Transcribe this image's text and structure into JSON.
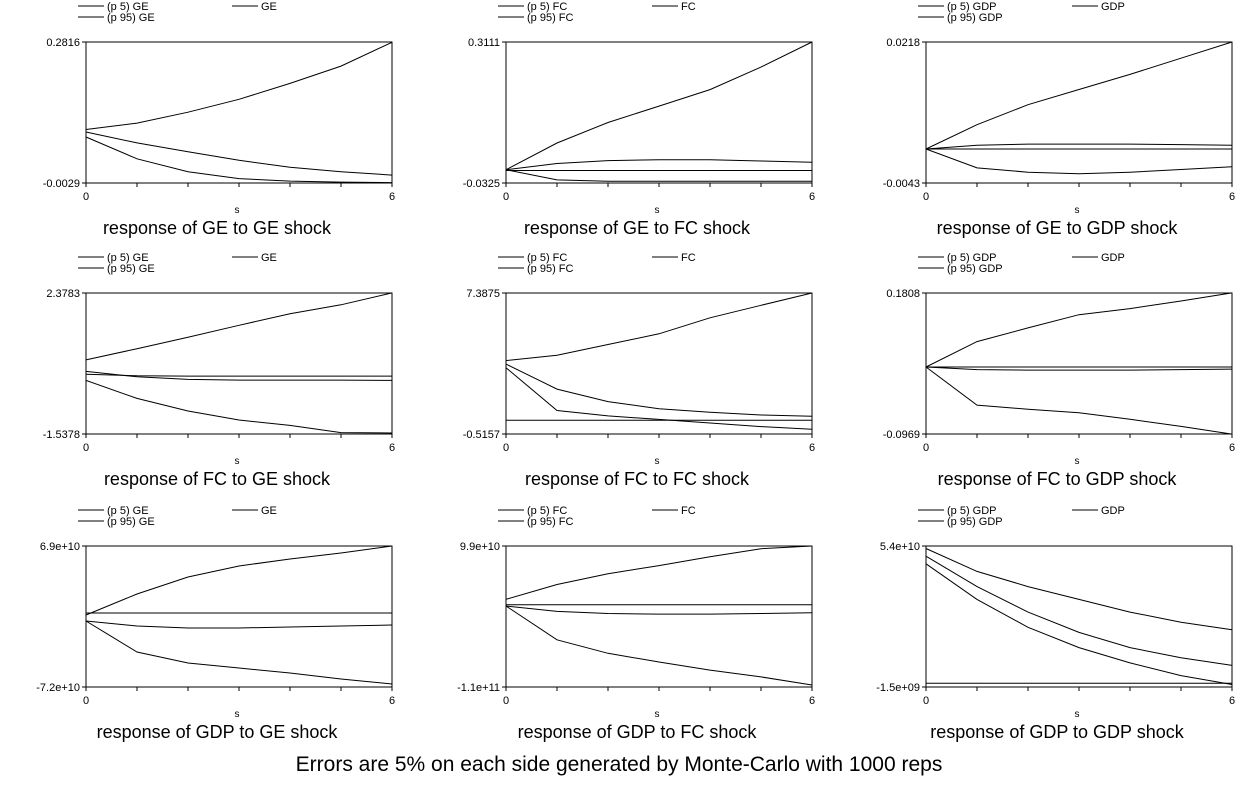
{
  "footer": "Errors are 5% on each side generated by Monte-Carlo with 1000 reps",
  "chart_data": [
    {
      "type": "line",
      "title": "response of GE to GE shock",
      "xlabel": "s",
      "ylabel": "",
      "x": [
        0,
        1,
        2,
        3,
        4,
        5,
        6
      ],
      "ylim": [
        -0.0029,
        0.2816
      ],
      "yticks": [
        "0.2816",
        "-0.0029"
      ],
      "xticks": [
        "0",
        "6"
      ],
      "legend": [
        "(p 5) GE",
        "GE",
        "(p 95) GE"
      ],
      "series": [
        {
          "name": "(p 5) GE",
          "values": [
            0.09,
            0.046,
            0.02,
            0.006,
            0.001,
            -0.001,
            -0.002
          ]
        },
        {
          "name": "GE",
          "values": [
            0.1,
            0.078,
            0.06,
            0.043,
            0.029,
            0.02,
            0.013
          ]
        },
        {
          "name": "(p 95) GE",
          "values": [
            0.105,
            0.118,
            0.14,
            0.166,
            0.198,
            0.233,
            0.281
          ]
        },
        {
          "name": "",
          "values": [
            -0.0029,
            -0.0029,
            -0.0029,
            -0.0029,
            -0.0029,
            -0.0029,
            -0.0029
          ]
        }
      ]
    },
    {
      "type": "line",
      "title": "response of GE to FC shock",
      "xlabel": "s",
      "ylabel": "",
      "x": [
        0,
        1,
        2,
        3,
        4,
        5,
        6
      ],
      "ylim": [
        -0.0325,
        0.3111
      ],
      "yticks": [
        "0.3111",
        "-0.0325"
      ],
      "xticks": [
        "0",
        "6"
      ],
      "legend": [
        "(p 5) FC",
        "FC",
        "(p 95) FC"
      ],
      "series": [
        {
          "name": "(p 5) FC",
          "values": [
            0.0,
            -0.025,
            -0.028,
            -0.028,
            -0.028,
            -0.028,
            -0.028
          ]
        },
        {
          "name": "FC",
          "values": [
            0.0,
            0.015,
            0.022,
            0.024,
            0.024,
            0.021,
            0.018
          ]
        },
        {
          "name": "(p 95) FC",
          "values": [
            0.0,
            0.065,
            0.115,
            0.155,
            0.195,
            0.25,
            0.311
          ]
        },
        {
          "name": "",
          "values": [
            -0.002,
            -0.002,
            -0.002,
            -0.002,
            -0.002,
            -0.002,
            -0.002
          ]
        }
      ]
    },
    {
      "type": "line",
      "title": "response of GE to GDP shock",
      "xlabel": "s",
      "ylabel": "",
      "x": [
        0,
        1,
        2,
        3,
        4,
        5,
        6
      ],
      "ylim": [
        -0.0043,
        0.0218
      ],
      "yticks": [
        "0.0218",
        "-0.0043"
      ],
      "xticks": [
        "0",
        "6"
      ],
      "legend": [
        "(p 5) GDP",
        "GDP",
        "(p 95) GDP"
      ],
      "series": [
        {
          "name": "(p 5) GDP",
          "values": [
            0.002,
            -0.0015,
            -0.0023,
            -0.0026,
            -0.0023,
            -0.0018,
            -0.0013
          ]
        },
        {
          "name": "GDP",
          "values": [
            0.002,
            0.0027,
            0.0029,
            0.0029,
            0.0029,
            0.0028,
            0.0027
          ]
        },
        {
          "name": "(p 95) GDP",
          "values": [
            0.002,
            0.0065,
            0.0102,
            0.013,
            0.0158,
            0.0188,
            0.0218
          ]
        },
        {
          "name": "",
          "values": [
            0.002,
            0.002,
            0.002,
            0.002,
            0.002,
            0.002,
            0.002
          ]
        }
      ]
    },
    {
      "type": "line",
      "title": "response of FC to GE shock",
      "xlabel": "s",
      "ylabel": "",
      "x": [
        0,
        1,
        2,
        3,
        4,
        5,
        6
      ],
      "ylim": [
        -1.5378,
        2.3783
      ],
      "yticks": [
        "2.3783",
        "-1.5378"
      ],
      "xticks": [
        "0",
        "6"
      ],
      "legend": [
        "(p 5) GE",
        "GE",
        "(p 95) GE"
      ],
      "series": [
        {
          "name": "(p 5) GE",
          "values": [
            -0.05,
            -0.55,
            -0.9,
            -1.15,
            -1.3,
            -1.5,
            -1.51
          ]
        },
        {
          "name": "GE",
          "values": [
            0.2,
            0.05,
            -0.02,
            -0.04,
            -0.04,
            -0.04,
            -0.05
          ]
        },
        {
          "name": "(p 95) GE",
          "values": [
            0.52,
            0.83,
            1.15,
            1.48,
            1.8,
            2.05,
            2.38
          ]
        },
        {
          "name": "",
          "values": [
            0.12,
            0.08,
            0.07,
            0.07,
            0.07,
            0.07,
            0.07
          ]
        }
      ]
    },
    {
      "type": "line",
      "title": "response of FC to FC shock",
      "xlabel": "s",
      "ylabel": "",
      "x": [
        0,
        1,
        2,
        3,
        4,
        5,
        6
      ],
      "ylim": [
        -0.5157,
        7.3875
      ],
      "yticks": [
        "7.3875",
        "-0.5157"
      ],
      "xticks": [
        "0",
        "6"
      ],
      "legend": [
        "(p 5) FC",
        "FC",
        "(p 95) FC"
      ],
      "series": [
        {
          "name": "(p 5) FC",
          "values": [
            3.2,
            0.8,
            0.5,
            0.3,
            0.1,
            -0.1,
            -0.25
          ]
        },
        {
          "name": "FC",
          "values": [
            3.4,
            2.0,
            1.3,
            0.9,
            0.7,
            0.55,
            0.48
          ]
        },
        {
          "name": "(p 95) FC",
          "values": [
            3.6,
            3.9,
            4.5,
            5.1,
            6.0,
            6.7,
            7.39
          ]
        },
        {
          "name": "",
          "values": [
            0.25,
            0.25,
            0.25,
            0.25,
            0.25,
            0.25,
            0.25
          ]
        }
      ]
    },
    {
      "type": "line",
      "title": "response of FC to GDP shock",
      "xlabel": "s",
      "ylabel": "",
      "x": [
        0,
        1,
        2,
        3,
        4,
        5,
        6
      ],
      "ylim": [
        -0.0969,
        0.1808
      ],
      "yticks": [
        "0.1808",
        "-0.0969"
      ],
      "xticks": [
        "0",
        "6"
      ],
      "legend": [
        "(p 5) GDP",
        "GDP",
        "(p 95) GDP"
      ],
      "series": [
        {
          "name": "(p 5) GDP",
          "values": [
            0.035,
            -0.04,
            -0.048,
            -0.055,
            -0.068,
            -0.082,
            -0.097
          ]
        },
        {
          "name": "GDP",
          "values": [
            0.035,
            0.03,
            0.029,
            0.029,
            0.029,
            0.03,
            0.031
          ]
        },
        {
          "name": "(p 95) GDP",
          "values": [
            0.035,
            0.085,
            0.112,
            0.138,
            0.15,
            0.165,
            0.181
          ]
        },
        {
          "name": "",
          "values": [
            0.035,
            0.035,
            0.035,
            0.035,
            0.035,
            0.035,
            0.035
          ]
        }
      ]
    },
    {
      "type": "line",
      "title": "response of GDP to GE shock",
      "xlabel": "s",
      "ylabel": "",
      "x": [
        0,
        1,
        2,
        3,
        4,
        5,
        6
      ],
      "ylim": [
        -72000000000,
        69000000000
      ],
      "yticks": [
        "6.9e+10",
        "-7.2e+10"
      ],
      "xticks": [
        "0",
        "6"
      ],
      "legend": [
        "(p 5) GE",
        "GE",
        "(p 95) GE"
      ],
      "series": [
        {
          "name": "(p 5) GE",
          "values": [
            -6000000000,
            -37000000000,
            -48000000000,
            -53000000000,
            -58000000000,
            -64000000000,
            -69000000000
          ]
        },
        {
          "name": "GE",
          "values": [
            -6000000000,
            -11000000000,
            -13000000000,
            -13000000000,
            -12000000000,
            -11000000000,
            -10000000000
          ]
        },
        {
          "name": "(p 95) GE",
          "values": [
            0,
            21000000000,
            38000000000,
            49000000000,
            56000000000,
            62000000000,
            69000000000
          ]
        },
        {
          "name": "",
          "values": [
            2000000000,
            2000000000,
            2000000000,
            2000000000,
            2000000000,
            2000000000,
            2000000000
          ]
        }
      ]
    },
    {
      "type": "line",
      "title": "response of GDP to FC shock",
      "xlabel": "s",
      "ylabel": "",
      "x": [
        0,
        1,
        2,
        3,
        4,
        5,
        6
      ],
      "ylim": [
        -110000000000,
        99000000000
      ],
      "yticks": [
        "9.9e+10",
        "-1.1e+11"
      ],
      "xticks": [
        "0",
        "6"
      ],
      "legend": [
        "(p 5) FC",
        "FC",
        "(p 95) FC"
      ],
      "series": [
        {
          "name": "(p 5) FC",
          "values": [
            10000000000,
            -40000000000,
            -60000000000,
            -73000000000,
            -85000000000,
            -95000000000,
            -107000000000
          ]
        },
        {
          "name": "FC",
          "values": [
            10000000000,
            2000000000,
            -1000000000,
            -2000000000,
            -2000000000,
            -1000000000,
            0
          ]
        },
        {
          "name": "(p 95) FC",
          "values": [
            20000000000,
            42000000000,
            58000000000,
            70000000000,
            83000000000,
            95000000000,
            99000000000
          ]
        },
        {
          "name": "",
          "values": [
            12000000000,
            12000000000,
            12000000000,
            12000000000,
            12000000000,
            12000000000,
            12000000000
          ]
        }
      ]
    },
    {
      "type": "line",
      "title": "response of GDP to GDP shock",
      "xlabel": "s",
      "ylabel": "",
      "x": [
        0,
        1,
        2,
        3,
        4,
        5,
        6
      ],
      "ylim": [
        -1500000000,
        54000000000
      ],
      "yticks": [
        "5.4e+10",
        "-1.5e+09"
      ],
      "xticks": [
        "0",
        "6"
      ],
      "legend": [
        "(p 5) GDP",
        "GDP",
        "(p 95) GDP"
      ],
      "series": [
        {
          "name": "(p 5) GDP",
          "values": [
            47000000000,
            33000000000,
            22000000000,
            14000000000,
            8000000000,
            3000000000,
            -500000000
          ]
        },
        {
          "name": "GDP",
          "values": [
            50000000000,
            38000000000,
            28000000000,
            20000000000,
            14000000000,
            10000000000,
            7000000000
          ]
        },
        {
          "name": "(p 95) GDP",
          "values": [
            53000000000,
            44000000000,
            38000000000,
            33000000000,
            28000000000,
            24000000000,
            21000000000
          ]
        },
        {
          "name": "",
          "values": [
            0,
            0,
            0,
            0,
            0,
            0,
            0
          ]
        }
      ]
    }
  ]
}
